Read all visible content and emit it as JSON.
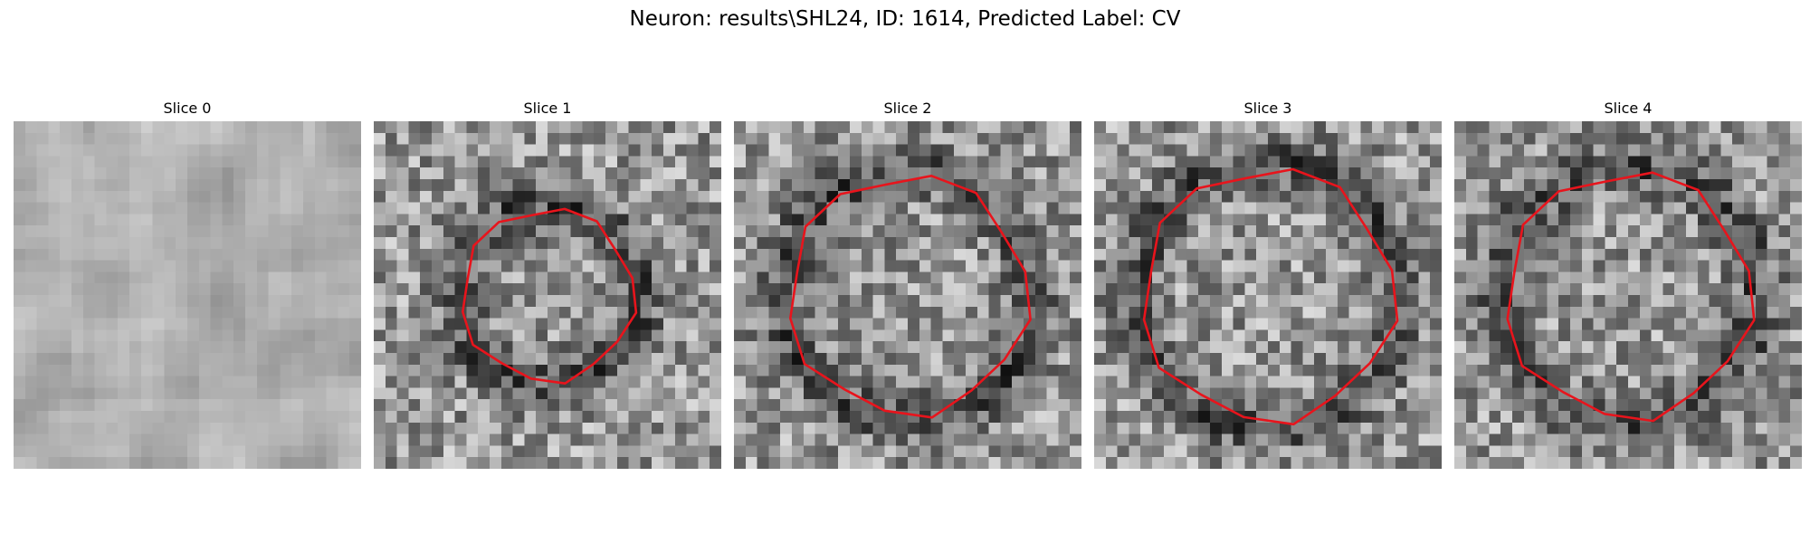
{
  "figure": {
    "title": "Neuron: results\\SHL24, ID: 1614, Predicted Label: CV"
  },
  "panels": [
    {
      "title": "Slice 0",
      "contour": false,
      "seed": 7,
      "pattern": "blobs",
      "contour_size": 0
    },
    {
      "title": "Slice 1",
      "contour": true,
      "seed": 13,
      "pattern": "ring",
      "contour_size": 0.52
    },
    {
      "title": "Slice 2",
      "contour": true,
      "seed": 29,
      "pattern": "ring",
      "contour_size": 0.72
    },
    {
      "title": "Slice 3",
      "contour": true,
      "seed": 41,
      "pattern": "ring",
      "contour_size": 0.76
    },
    {
      "title": "Slice 4",
      "contour": true,
      "seed": 53,
      "pattern": "ring",
      "contour_size": 0.74
    }
  ],
  "colors": {
    "contour": "#e8141c",
    "colormap": "gray"
  }
}
